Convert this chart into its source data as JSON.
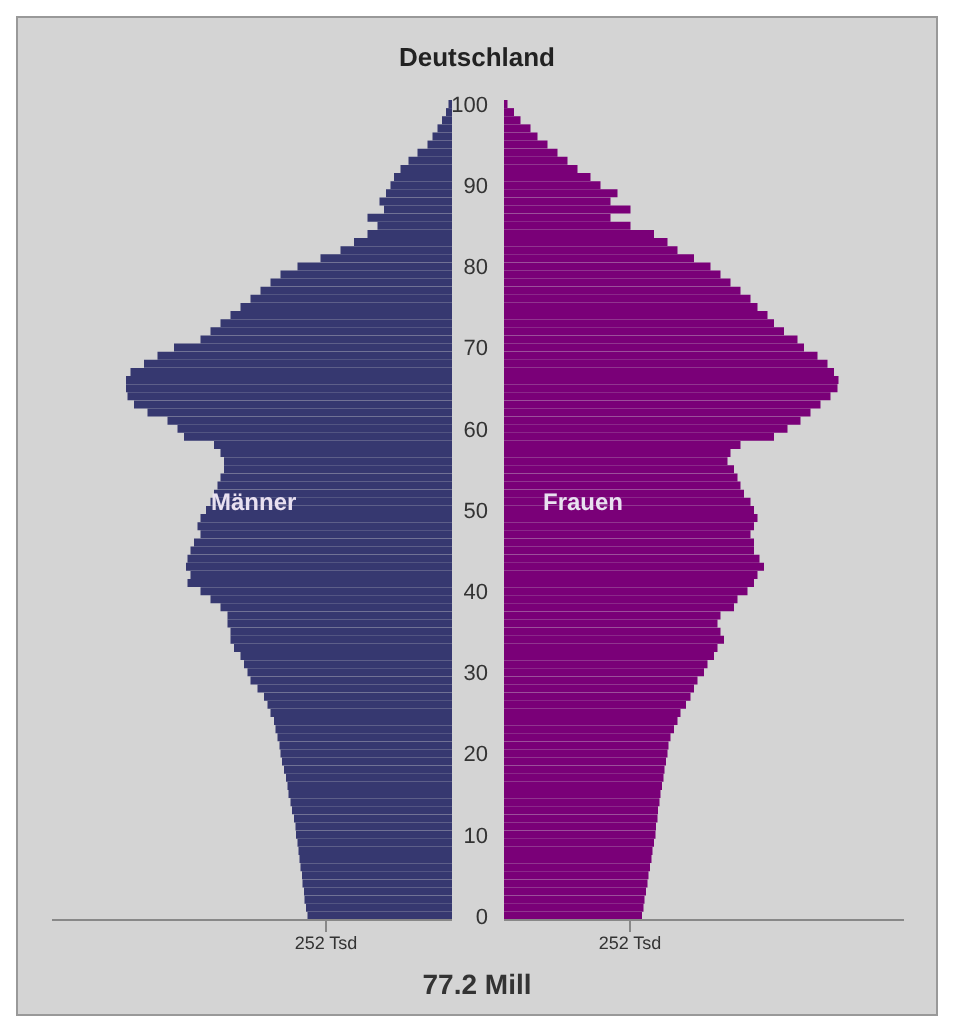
{
  "chart_data": [
    {
      "type": "bar",
      "orientation": "horizontal",
      "title": "Deutschland",
      "tick_labels": "x",
      "categories": [
        "100",
        null,
        null,
        null,
        null,
        null,
        null,
        null,
        null,
        null,
        "90",
        null,
        null,
        null,
        null,
        null,
        null,
        null,
        null,
        null,
        "80",
        null,
        null,
        null,
        null,
        null,
        null,
        null,
        null,
        null,
        "70",
        null,
        null,
        null,
        null,
        null,
        null,
        null,
        null,
        null,
        "60",
        null,
        null,
        null,
        null,
        null,
        null,
        null,
        null,
        null,
        "50",
        null,
        null,
        null,
        null,
        null,
        null,
        null,
        null,
        null,
        "40",
        null,
        null,
        null,
        null,
        null,
        null,
        null,
        null,
        null,
        "30",
        null,
        null,
        null,
        null,
        null,
        null,
        null,
        null,
        null,
        "20",
        null,
        null,
        null,
        null,
        null,
        null,
        null,
        null,
        null,
        "10",
        null,
        null,
        null,
        null,
        null,
        null,
        null,
        null,
        null,
        "0"
      ],
      "series": [
        {
          "name": "Männer",
          "color": "#363870",
          "values": [
            -7,
            -12,
            -20,
            -29,
            -39,
            -49,
            -69,
            -87,
            -103,
            -116,
            -123,
            -132,
            -145,
            -136,
            -169,
            -149,
            -169,
            -196,
            -223,
            -263,
            -309,
            -343,
            -363,
            -383,
            -403,
            -423,
            -443,
            -463,
            -483,
            -503,
            -556,
            -589,
            -616,
            -643,
            -652,
            -652,
            -649,
            -636,
            -609,
            -569,
            -549,
            -536,
            -476,
            -463,
            -456,
            -456,
            -463,
            -469,
            -476,
            -483,
            -492,
            -503,
            -509,
            -503,
            -516,
            -523,
            -529,
            -532,
            -523,
            -529,
            -503,
            -483,
            -463,
            -449,
            -449,
            -443,
            -443,
            -436,
            -423,
            -416,
            -409,
            -403,
            -389,
            -376,
            -369,
            -363,
            -356,
            -353,
            -349,
            -345,
            -343,
            -340,
            -336,
            -332,
            -329,
            -327,
            -323,
            -320,
            -316,
            -313,
            -312,
            -309,
            -307,
            -305,
            -303,
            -300,
            -299,
            -296,
            -295,
            -292,
            -289
          ]
        }
      ],
      "xlim": [
        -800,
        0
      ],
      "xticks": [
        {
          "value": -252,
          "label": "252 Tsd"
        }
      ]
    },
    {
      "type": "bar",
      "orientation": "horizontal",
      "annotations": [
        "77.2 Mill"
      ],
      "categories": [
        "100",
        null,
        null,
        null,
        null,
        null,
        null,
        null,
        null,
        null,
        "90",
        null,
        null,
        null,
        null,
        null,
        null,
        null,
        null,
        null,
        "80",
        null,
        null,
        null,
        null,
        null,
        null,
        null,
        null,
        null,
        "70",
        null,
        null,
        null,
        null,
        null,
        null,
        null,
        null,
        null,
        "60",
        null,
        null,
        null,
        null,
        null,
        null,
        null,
        null,
        null,
        "50",
        null,
        null,
        null,
        null,
        null,
        null,
        null,
        null,
        null,
        "40",
        null,
        null,
        null,
        null,
        null,
        null,
        null,
        null,
        null,
        "30",
        null,
        null,
        null,
        null,
        null,
        null,
        null,
        null,
        null,
        "20",
        null,
        null,
        null,
        null,
        null,
        null,
        null,
        null,
        null,
        "10",
        null,
        null,
        null,
        null,
        null,
        null,
        null,
        null,
        null,
        "0"
      ],
      "series": [
        {
          "name": "Frauen",
          "color": "#7a0078",
          "values": [
            7,
            20,
            33,
            53,
            67,
            87,
            107,
            127,
            147,
            173,
            193,
            227,
            213,
            253,
            213,
            253,
            300,
            327,
            347,
            380,
            413,
            433,
            453,
            473,
            493,
            507,
            527,
            540,
            560,
            587,
            600,
            627,
            647,
            660,
            669,
            667,
            653,
            633,
            613,
            593,
            567,
            540,
            473,
            453,
            447,
            460,
            467,
            473,
            480,
            493,
            500,
            507,
            500,
            493,
            500,
            500,
            511,
            520,
            507,
            500,
            487,
            467,
            460,
            433,
            427,
            433,
            440,
            427,
            420,
            407,
            400,
            387,
            380,
            373,
            364,
            353,
            347,
            340,
            333,
            329,
            327,
            324,
            321,
            319,
            316,
            313,
            311,
            308,
            307,
            304,
            303,
            300,
            297,
            295,
            292,
            289,
            287,
            284,
            281,
            279,
            276
          ]
        }
      ],
      "xlim": [
        0,
        800
      ],
      "xticks": [
        {
          "value": 252,
          "label": "252 Tsd"
        }
      ]
    }
  ]
}
